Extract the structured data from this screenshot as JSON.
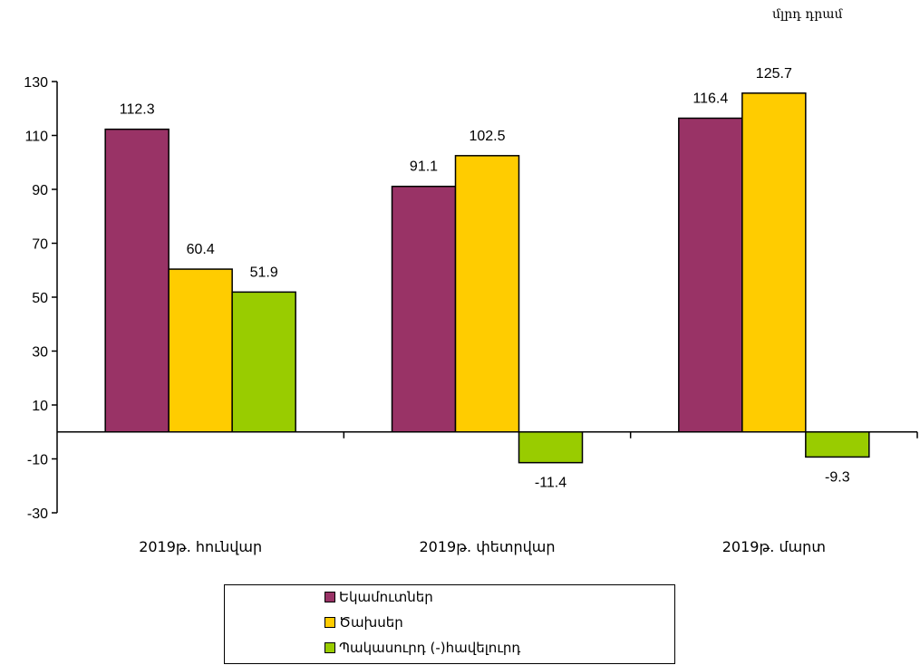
{
  "unit_label": "մլրդ դրամ",
  "chart_data": {
    "type": "bar",
    "categories": [
      "2019թ. հունվար",
      "2019թ. փետրվար",
      "2019թ. մարտ"
    ],
    "series": [
      {
        "name": "Եկամուտներ",
        "values": [
          112.3,
          91.1,
          116.4
        ],
        "color": "#993366"
      },
      {
        "name": "Ծախսեր",
        "values": [
          60.4,
          102.5,
          125.7
        ],
        "color": "#FFCC00"
      },
      {
        "name": "Պակասուրդ (-)հավելուրդ",
        "values": [
          51.9,
          -11.4,
          -9.3
        ],
        "color": "#99CC00"
      }
    ],
    "yticks": [
      130,
      110,
      90,
      70,
      50,
      30,
      10,
      -10,
      -30
    ],
    "ylim": [
      -30,
      130
    ],
    "grid": false,
    "legend_position": "bottom"
  }
}
